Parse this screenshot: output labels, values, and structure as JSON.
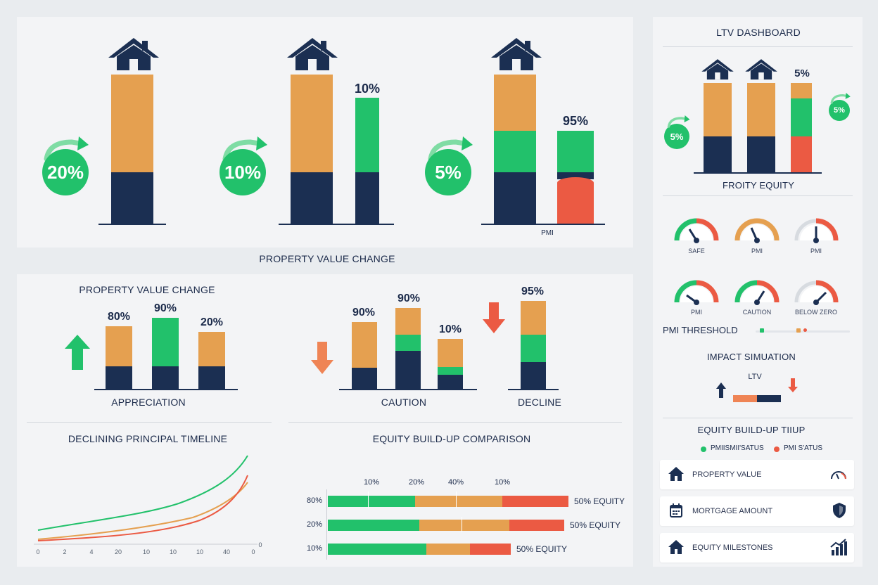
{
  "colors": {
    "navy": "#1b2f52",
    "orange": "#e5a050",
    "green": "#22c16b",
    "red": "#eb5a43"
  },
  "top": {
    "caption": "PROPERTY VALUE CHANGE",
    "groups": [
      {
        "circle": "20%",
        "bar2_label": "",
        "bottom_label": ""
      },
      {
        "circle": "10%",
        "bar2_label": "10%",
        "bottom_label": ""
      },
      {
        "circle": "5%",
        "bar2_label": "95%",
        "bottom_label": "PMI"
      }
    ]
  },
  "middle": {
    "title": "PROPERTY VALUE CHANGE",
    "groups": [
      {
        "label": "APPRECIATION",
        "values": [
          "80%",
          "90%",
          "20%"
        ]
      },
      {
        "label": "CAUTION",
        "values": [
          "90%",
          "90%",
          "10%"
        ]
      },
      {
        "label": "DECLINE",
        "values": [
          "95%"
        ]
      }
    ]
  },
  "timeline": {
    "title": "DECLINING PRINCIPAL TIMELINE",
    "x_ticks": [
      "0",
      "2",
      "4",
      "20",
      "10",
      "10",
      "10",
      "40",
      "0"
    ],
    "y_tick": "0"
  },
  "comparison": {
    "title": "EQUITY BUILD-UP COMPARISON",
    "top_ticks": [
      "10%",
      "20%",
      "40%",
      "10%"
    ],
    "rows": [
      {
        "label": "80%",
        "end": "50% EQUITY"
      },
      {
        "label": "20%",
        "end": "50% EQUITY"
      },
      {
        "label": "10%",
        "end": "50% EQUITY"
      }
    ]
  },
  "sidebar": {
    "title": "LTV DASHBOARD",
    "bars_top_label": "5%",
    "left_circle": "5%",
    "right_circle": "5%",
    "chart_caption": "FROITY EQUITY",
    "gauges_row1": [
      "SAFE",
      "PMI",
      "PMI"
    ],
    "gauges_row2": [
      "PMI",
      "CAUTION",
      "BELOW ZERO"
    ],
    "pmi_threshold": "PMI THRESHOLD",
    "impact_title": "IMPACT SIMUATION",
    "impact_ltv": "LTV",
    "equity_title": "EQUITY BUILD-UP TIIUP",
    "legend": [
      {
        "label": "PMIISMII'SATUS",
        "color": "#22c16b"
      },
      {
        "label": "PMI S'ATUS",
        "color": "#eb5a43"
      }
    ],
    "cards": [
      {
        "label": "PROPERTY VALUE",
        "icon": "house-icon",
        "right_icon": "speedometer-icon"
      },
      {
        "label": "MORTGAGE AMOUNT",
        "icon": "calendar-icon",
        "right_icon": "shield-icon"
      },
      {
        "label": "EQUITY MILESTONES",
        "icon": "house-icon",
        "right_icon": "growth-chart-icon"
      }
    ]
  }
}
